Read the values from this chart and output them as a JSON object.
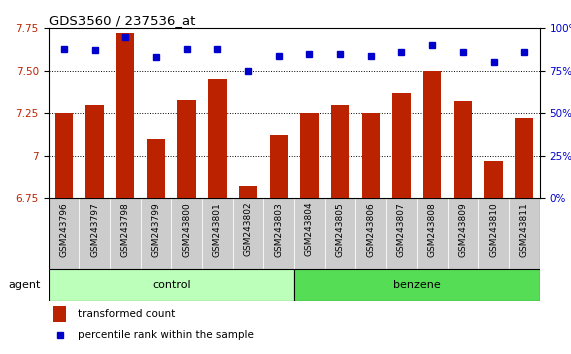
{
  "title": "GDS3560 / 237536_at",
  "samples": [
    "GSM243796",
    "GSM243797",
    "GSM243798",
    "GSM243799",
    "GSM243800",
    "GSM243801",
    "GSM243802",
    "GSM243803",
    "GSM243804",
    "GSM243805",
    "GSM243806",
    "GSM243807",
    "GSM243808",
    "GSM243809",
    "GSM243810",
    "GSM243811"
  ],
  "bar_values": [
    7.25,
    7.3,
    7.72,
    7.1,
    7.33,
    7.45,
    6.82,
    7.12,
    7.25,
    7.3,
    7.25,
    7.37,
    7.5,
    7.32,
    6.97,
    7.22
  ],
  "percentile_values": [
    88,
    87,
    95,
    83,
    88,
    88,
    75,
    84,
    85,
    85,
    84,
    86,
    90,
    86,
    80,
    86
  ],
  "bar_color": "#bb2200",
  "percentile_color": "#0000cc",
  "ylim_left": [
    6.75,
    7.75
  ],
  "ylim_right": [
    0,
    100
  ],
  "yticks_left": [
    6.75,
    7.0,
    7.25,
    7.5,
    7.75
  ],
  "yticks_right": [
    0,
    25,
    50,
    75,
    100
  ],
  "n_control": 8,
  "n_benzene": 8,
  "control_color": "#bbffbb",
  "benzene_color": "#55dd55",
  "xtick_bg_color": "#cccccc",
  "bg_color": "#ffffff",
  "legend_bar_label": "transformed count",
  "legend_pct_label": "percentile rank within the sample"
}
